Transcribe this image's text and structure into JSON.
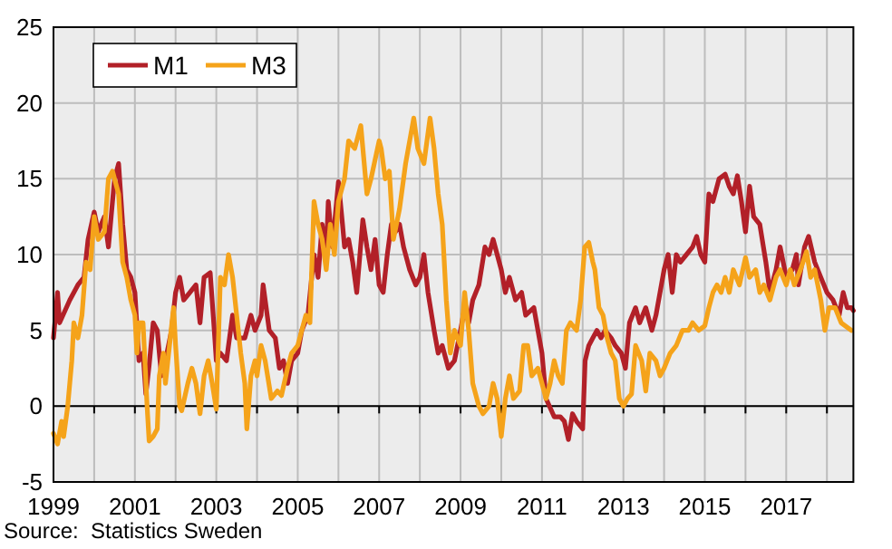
{
  "chart_data": {
    "type": "line",
    "annotations": [
      "Source:  Statistics Sweden"
    ],
    "xlim": [
      1999,
      2018.65
    ],
    "xticks": [
      1999,
      {
        "value": 2000,
        "label": null
      },
      2001,
      {
        "value": 2002,
        "label": null
      },
      2003,
      {
        "value": 2004,
        "label": null
      },
      2005,
      {
        "value": 2006,
        "label": null
      },
      2007,
      {
        "value": 2008,
        "label": null
      },
      2009,
      {
        "value": 2010,
        "label": null
      },
      2011,
      {
        "value": 2012,
        "label": null
      },
      2013,
      {
        "value": 2014,
        "label": null
      },
      2015,
      {
        "value": 2016,
        "label": null
      },
      2017,
      {
        "value": 2018,
        "label": null
      }
    ],
    "ylim": [
      -5,
      25
    ],
    "yticks": [
      -5,
      0,
      5,
      10,
      15,
      20,
      25
    ],
    "grid": true,
    "legend": "top left",
    "line_style": "solid",
    "series": [
      {
        "name": "M1",
        "color": "#b22028",
        "x": [
          1999.0,
          1999.1,
          1999.15,
          1999.4,
          1999.6,
          1999.75,
          1999.85,
          2000.0,
          2000.1,
          2000.25,
          2000.35,
          2000.5,
          2000.6,
          2000.7,
          2000.8,
          2000.9,
          2001.0,
          2001.1,
          2001.2,
          2001.27,
          2001.35,
          2001.45,
          2001.55,
          2001.65,
          2001.75,
          2001.9,
          2002.0,
          2002.1,
          2002.2,
          2002.35,
          2002.5,
          2002.6,
          2002.7,
          2002.85,
          2002.95,
          2003.0,
          2003.1,
          2003.25,
          2003.4,
          2003.5,
          2003.7,
          2003.85,
          2003.95,
          2004.1,
          2004.15,
          2004.3,
          2004.45,
          2004.55,
          2004.65,
          2004.75,
          2004.85,
          2005.0,
          2005.1,
          2005.25,
          2005.4,
          2005.5,
          2005.6,
          2005.7,
          2005.75,
          2005.85,
          2006.0,
          2006.1,
          2006.15,
          2006.25,
          2006.35,
          2006.45,
          2006.6,
          2006.7,
          2006.8,
          2006.9,
          2007.0,
          2007.1,
          2007.2,
          2007.3,
          2007.4,
          2007.5,
          2007.6,
          2007.75,
          2007.9,
          2008.0,
          2008.1,
          2008.2,
          2008.35,
          2008.45,
          2008.55,
          2008.7,
          2008.85,
          2009.0,
          2009.1,
          2009.2,
          2009.3,
          2009.45,
          2009.6,
          2009.7,
          2009.8,
          2009.9,
          2010.0,
          2010.1,
          2010.2,
          2010.35,
          2010.5,
          2010.6,
          2010.8,
          2010.9,
          2011.0,
          2011.1,
          2011.3,
          2011.45,
          2011.55,
          2011.65,
          2011.75,
          2011.85,
          2012.0,
          2012.06,
          2012.15,
          2012.25,
          2012.35,
          2012.45,
          2012.55,
          2012.7,
          2012.8,
          2012.95,
          2013.05,
          2013.15,
          2013.3,
          2013.4,
          2013.55,
          2013.7,
          2013.8,
          2014.0,
          2014.1,
          2014.2,
          2014.3,
          2014.4,
          2014.55,
          2014.7,
          2014.8,
          2014.9,
          2015.0,
          2015.1,
          2015.2,
          2015.35,
          2015.5,
          2015.6,
          2015.7,
          2015.8,
          2015.9,
          2016.0,
          2016.1,
          2016.2,
          2016.35,
          2016.5,
          2016.6,
          2016.75,
          2016.85,
          2017.0,
          2017.15,
          2017.25,
          2017.3,
          2017.45,
          2017.55,
          2017.7,
          2017.85,
          2018.0,
          2018.15,
          2018.3,
          2018.4,
          2018.5,
          2018.6,
          2018.65
        ],
        "values": [
          4.5,
          7.5,
          5.5,
          7,
          8,
          8.5,
          11,
          12.8,
          11.5,
          12.5,
          10.5,
          15,
          16,
          12,
          9,
          8.5,
          7.5,
          3,
          3.5,
          0.8,
          2.7,
          5.5,
          5,
          2,
          3,
          5,
          7.5,
          8.5,
          7,
          7.5,
          8,
          5.5,
          8.5,
          8.8,
          5,
          3,
          3.5,
          3,
          6,
          4.5,
          4.5,
          6,
          5,
          6,
          8,
          5,
          4.5,
          2.5,
          3,
          1.5,
          3,
          3.5,
          5,
          6,
          10,
          8.5,
          12,
          10,
          13.5,
          10.5,
          14.8,
          12,
          10.5,
          11,
          9.5,
          7.5,
          12.3,
          10.5,
          9,
          11,
          8,
          7.5,
          10,
          12,
          11.5,
          12,
          10.5,
          9,
          8,
          8.5,
          10,
          7.5,
          5,
          3.5,
          4,
          2.5,
          3,
          5,
          6.5,
          5.5,
          7,
          8,
          10.5,
          10,
          11,
          10,
          9,
          7.5,
          8.5,
          7,
          7.5,
          6,
          6.5,
          5,
          3.5,
          0.5,
          -0.7,
          -0.7,
          -1,
          -2.2,
          -0.5,
          -1,
          -1.5,
          3,
          4,
          4.5,
          5,
          4.5,
          5,
          4.5,
          4,
          3.5,
          2.5,
          5.5,
          6.5,
          5.5,
          6.5,
          5,
          6,
          9,
          10,
          7.5,
          10,
          9.5,
          10,
          10.5,
          11.2,
          10,
          9.5,
          14,
          13.5,
          15,
          15.3,
          14.5,
          14,
          15.2,
          13.5,
          11.5,
          14.5,
          12.5,
          12,
          9.5,
          7.5,
          9,
          10.5,
          8.5,
          9,
          10,
          8,
          10.5,
          11.2,
          9.5,
          8.5,
          7.5,
          7,
          6,
          7.5,
          6.5,
          6.5,
          6.3
        ]
      },
      {
        "name": "M3",
        "color": "#f5a31a",
        "x": [
          1999.0,
          1999.1,
          1999.2,
          1999.25,
          1999.35,
          1999.45,
          1999.5,
          1999.6,
          1999.7,
          1999.8,
          1999.9,
          2000.0,
          2000.1,
          2000.25,
          2000.35,
          2000.45,
          2000.6,
          2000.7,
          2000.8,
          2000.9,
          2001.0,
          2001.05,
          2001.1,
          2001.2,
          2001.3,
          2001.35,
          2001.45,
          2001.55,
          2001.6,
          2001.7,
          2001.75,
          2001.85,
          2001.95,
          2002.0,
          2002.1,
          2002.15,
          2002.3,
          2002.4,
          2002.5,
          2002.6,
          2002.7,
          2002.8,
          2002.9,
          2003.0,
          2003.1,
          2003.2,
          2003.3,
          2003.4,
          2003.5,
          2003.6,
          2003.7,
          2003.75,
          2003.85,
          2003.95,
          2004.0,
          2004.1,
          2004.2,
          2004.35,
          2004.5,
          2004.6,
          2004.75,
          2004.85,
          2005.0,
          2005.2,
          2005.3,
          2005.4,
          2005.5,
          2005.6,
          2005.7,
          2005.8,
          2005.9,
          2006.0,
          2006.15,
          2006.25,
          2006.4,
          2006.55,
          2006.7,
          2006.8,
          2007.0,
          2007.05,
          2007.15,
          2007.25,
          2007.35,
          2007.5,
          2007.65,
          2007.85,
          2007.95,
          2008.1,
          2008.25,
          2008.35,
          2008.45,
          2008.55,
          2008.65,
          2008.75,
          2008.85,
          2009.0,
          2009.1,
          2009.2,
          2009.3,
          2009.45,
          2009.55,
          2009.7,
          2009.8,
          2009.9,
          2010.0,
          2010.1,
          2010.2,
          2010.3,
          2010.45,
          2010.55,
          2010.65,
          2010.75,
          2010.9,
          2011.0,
          2011.1,
          2011.2,
          2011.3,
          2011.4,
          2011.5,
          2011.6,
          2011.7,
          2011.85,
          2011.95,
          2012.05,
          2012.15,
          2012.25,
          2012.3,
          2012.4,
          2012.5,
          2012.6,
          2012.7,
          2012.8,
          2012.9,
          2013.0,
          2013.1,
          2013.2,
          2013.3,
          2013.45,
          2013.55,
          2013.65,
          2013.8,
          2013.9,
          2014.0,
          2014.15,
          2014.3,
          2014.45,
          2014.6,
          2014.7,
          2014.85,
          2015.0,
          2015.1,
          2015.2,
          2015.3,
          2015.4,
          2015.5,
          2015.6,
          2015.7,
          2015.85,
          2016.0,
          2016.1,
          2016.25,
          2016.35,
          2016.45,
          2016.6,
          2016.75,
          2016.85,
          2017.0,
          2017.1,
          2017.2,
          2017.35,
          2017.5,
          2017.6,
          2017.7,
          2017.85,
          2017.95,
          2018.05,
          2018.2,
          2018.35,
          2018.5,
          2018.6
        ],
        "values": [
          -1.8,
          -2.5,
          -1,
          -2,
          0,
          3,
          5.5,
          4.5,
          6,
          9.5,
          9,
          12.5,
          11,
          11.5,
          15,
          15.5,
          14,
          9.5,
          8.5,
          7,
          6,
          3.5,
          5.5,
          5.5,
          0,
          -2.3,
          -2,
          -1.5,
          2,
          3.5,
          1.5,
          4,
          6.5,
          4,
          0,
          -0.3,
          1.5,
          2.5,
          1.5,
          -0.5,
          2,
          3,
          1.5,
          -0.2,
          8.5,
          8,
          10,
          8.5,
          6,
          3.5,
          1.5,
          -1.5,
          2,
          3,
          2,
          4,
          3,
          0.5,
          1,
          0.7,
          2.5,
          3.5,
          4,
          6,
          5.5,
          13.5,
          12,
          11,
          9,
          12,
          10,
          13.5,
          15,
          17.5,
          17,
          18.5,
          14,
          15,
          17.5,
          17,
          15,
          15.5,
          11,
          13,
          16,
          19,
          17,
          16,
          19,
          17,
          14,
          12,
          7,
          3.5,
          5,
          4,
          7.5,
          5,
          1.5,
          0,
          -0.5,
          0,
          1.5,
          0.5,
          -2,
          0.5,
          2,
          0.5,
          1,
          4,
          4,
          2,
          2.5,
          1.5,
          0.5,
          1.5,
          3,
          2,
          1.5,
          5,
          5.5,
          5,
          7,
          10.5,
          10.8,
          9.5,
          9,
          6.5,
          6,
          4.5,
          3.5,
          3,
          0.5,
          0,
          0.5,
          0.8,
          4,
          3,
          1,
          3.5,
          3,
          2,
          2.5,
          3.5,
          4,
          5,
          5,
          5.5,
          5,
          5.3,
          6.5,
          7.5,
          8,
          7.5,
          8.5,
          7.5,
          9,
          8,
          9.8,
          8.5,
          9,
          7.5,
          8,
          7,
          8.5,
          9,
          8,
          9,
          8,
          9,
          10.2,
          8.5,
          9,
          7,
          5,
          6.5,
          6.5,
          5.5,
          5.2,
          5
        ]
      }
    ]
  }
}
